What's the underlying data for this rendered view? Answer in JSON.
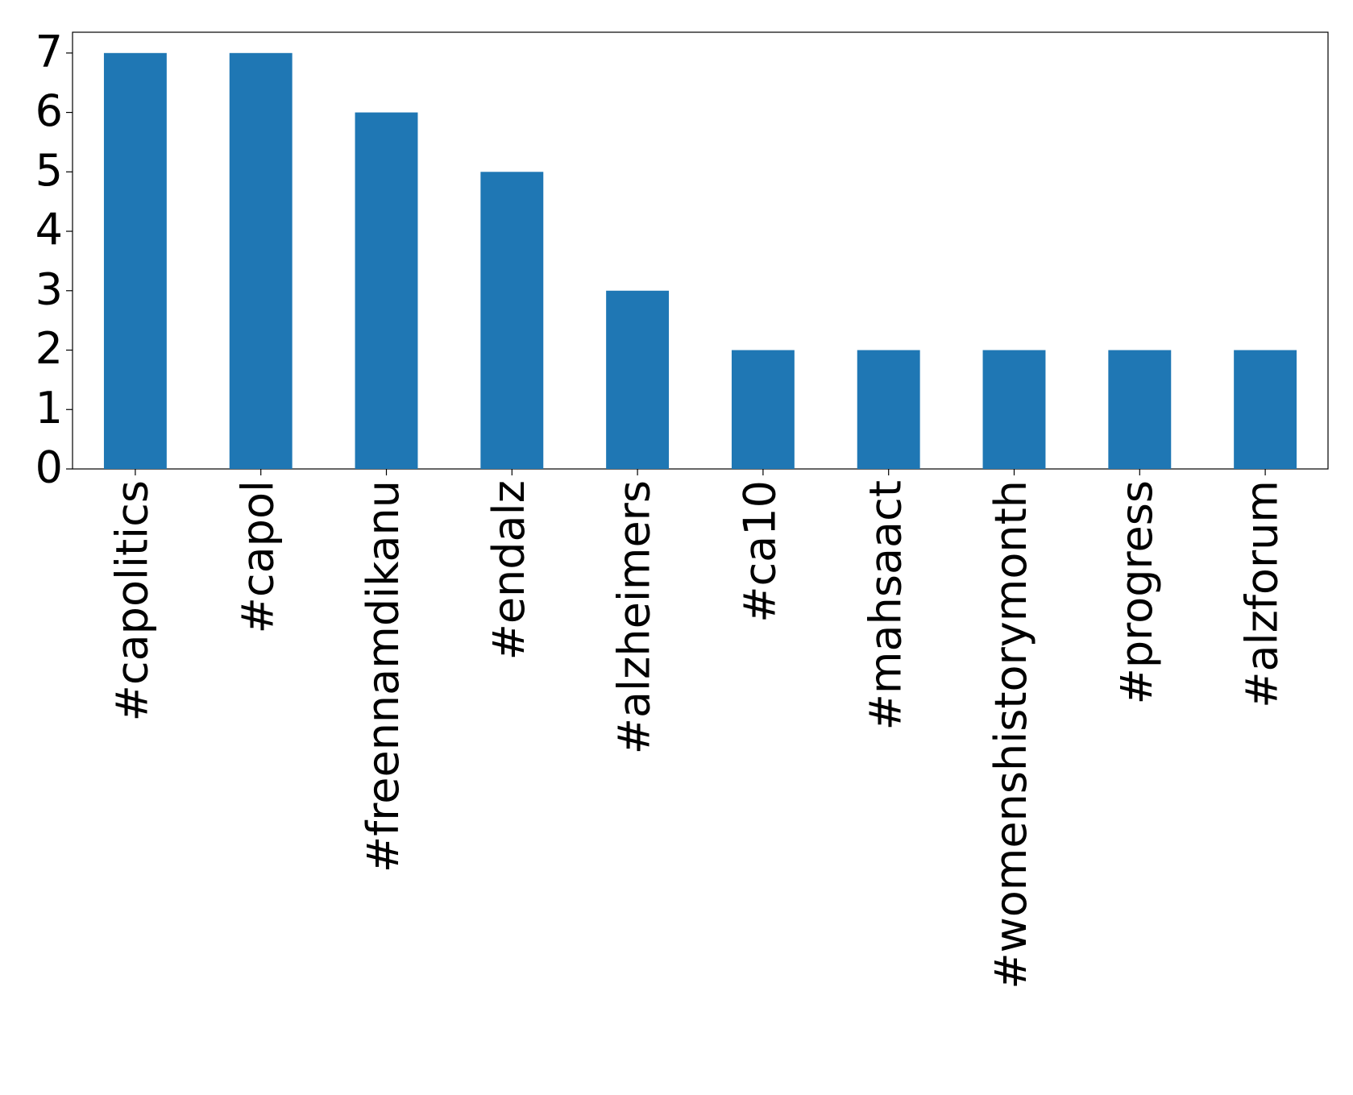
{
  "chart_data": {
    "type": "bar",
    "categories": [
      "#capolitics",
      "#capol",
      "#freennamdikanu",
      "#endalz",
      "#alzheimers",
      "#ca10",
      "#mahsaact",
      "#womenshistorymonth",
      "#progress",
      "#alzforum"
    ],
    "values": [
      7,
      7,
      6,
      5,
      3,
      2,
      2,
      2,
      2,
      2
    ],
    "color": "#1f77b4",
    "ylim": [
      0,
      7.35
    ],
    "yticks": [
      0,
      1,
      2,
      3,
      4,
      5,
      6,
      7
    ],
    "grid": false
  }
}
